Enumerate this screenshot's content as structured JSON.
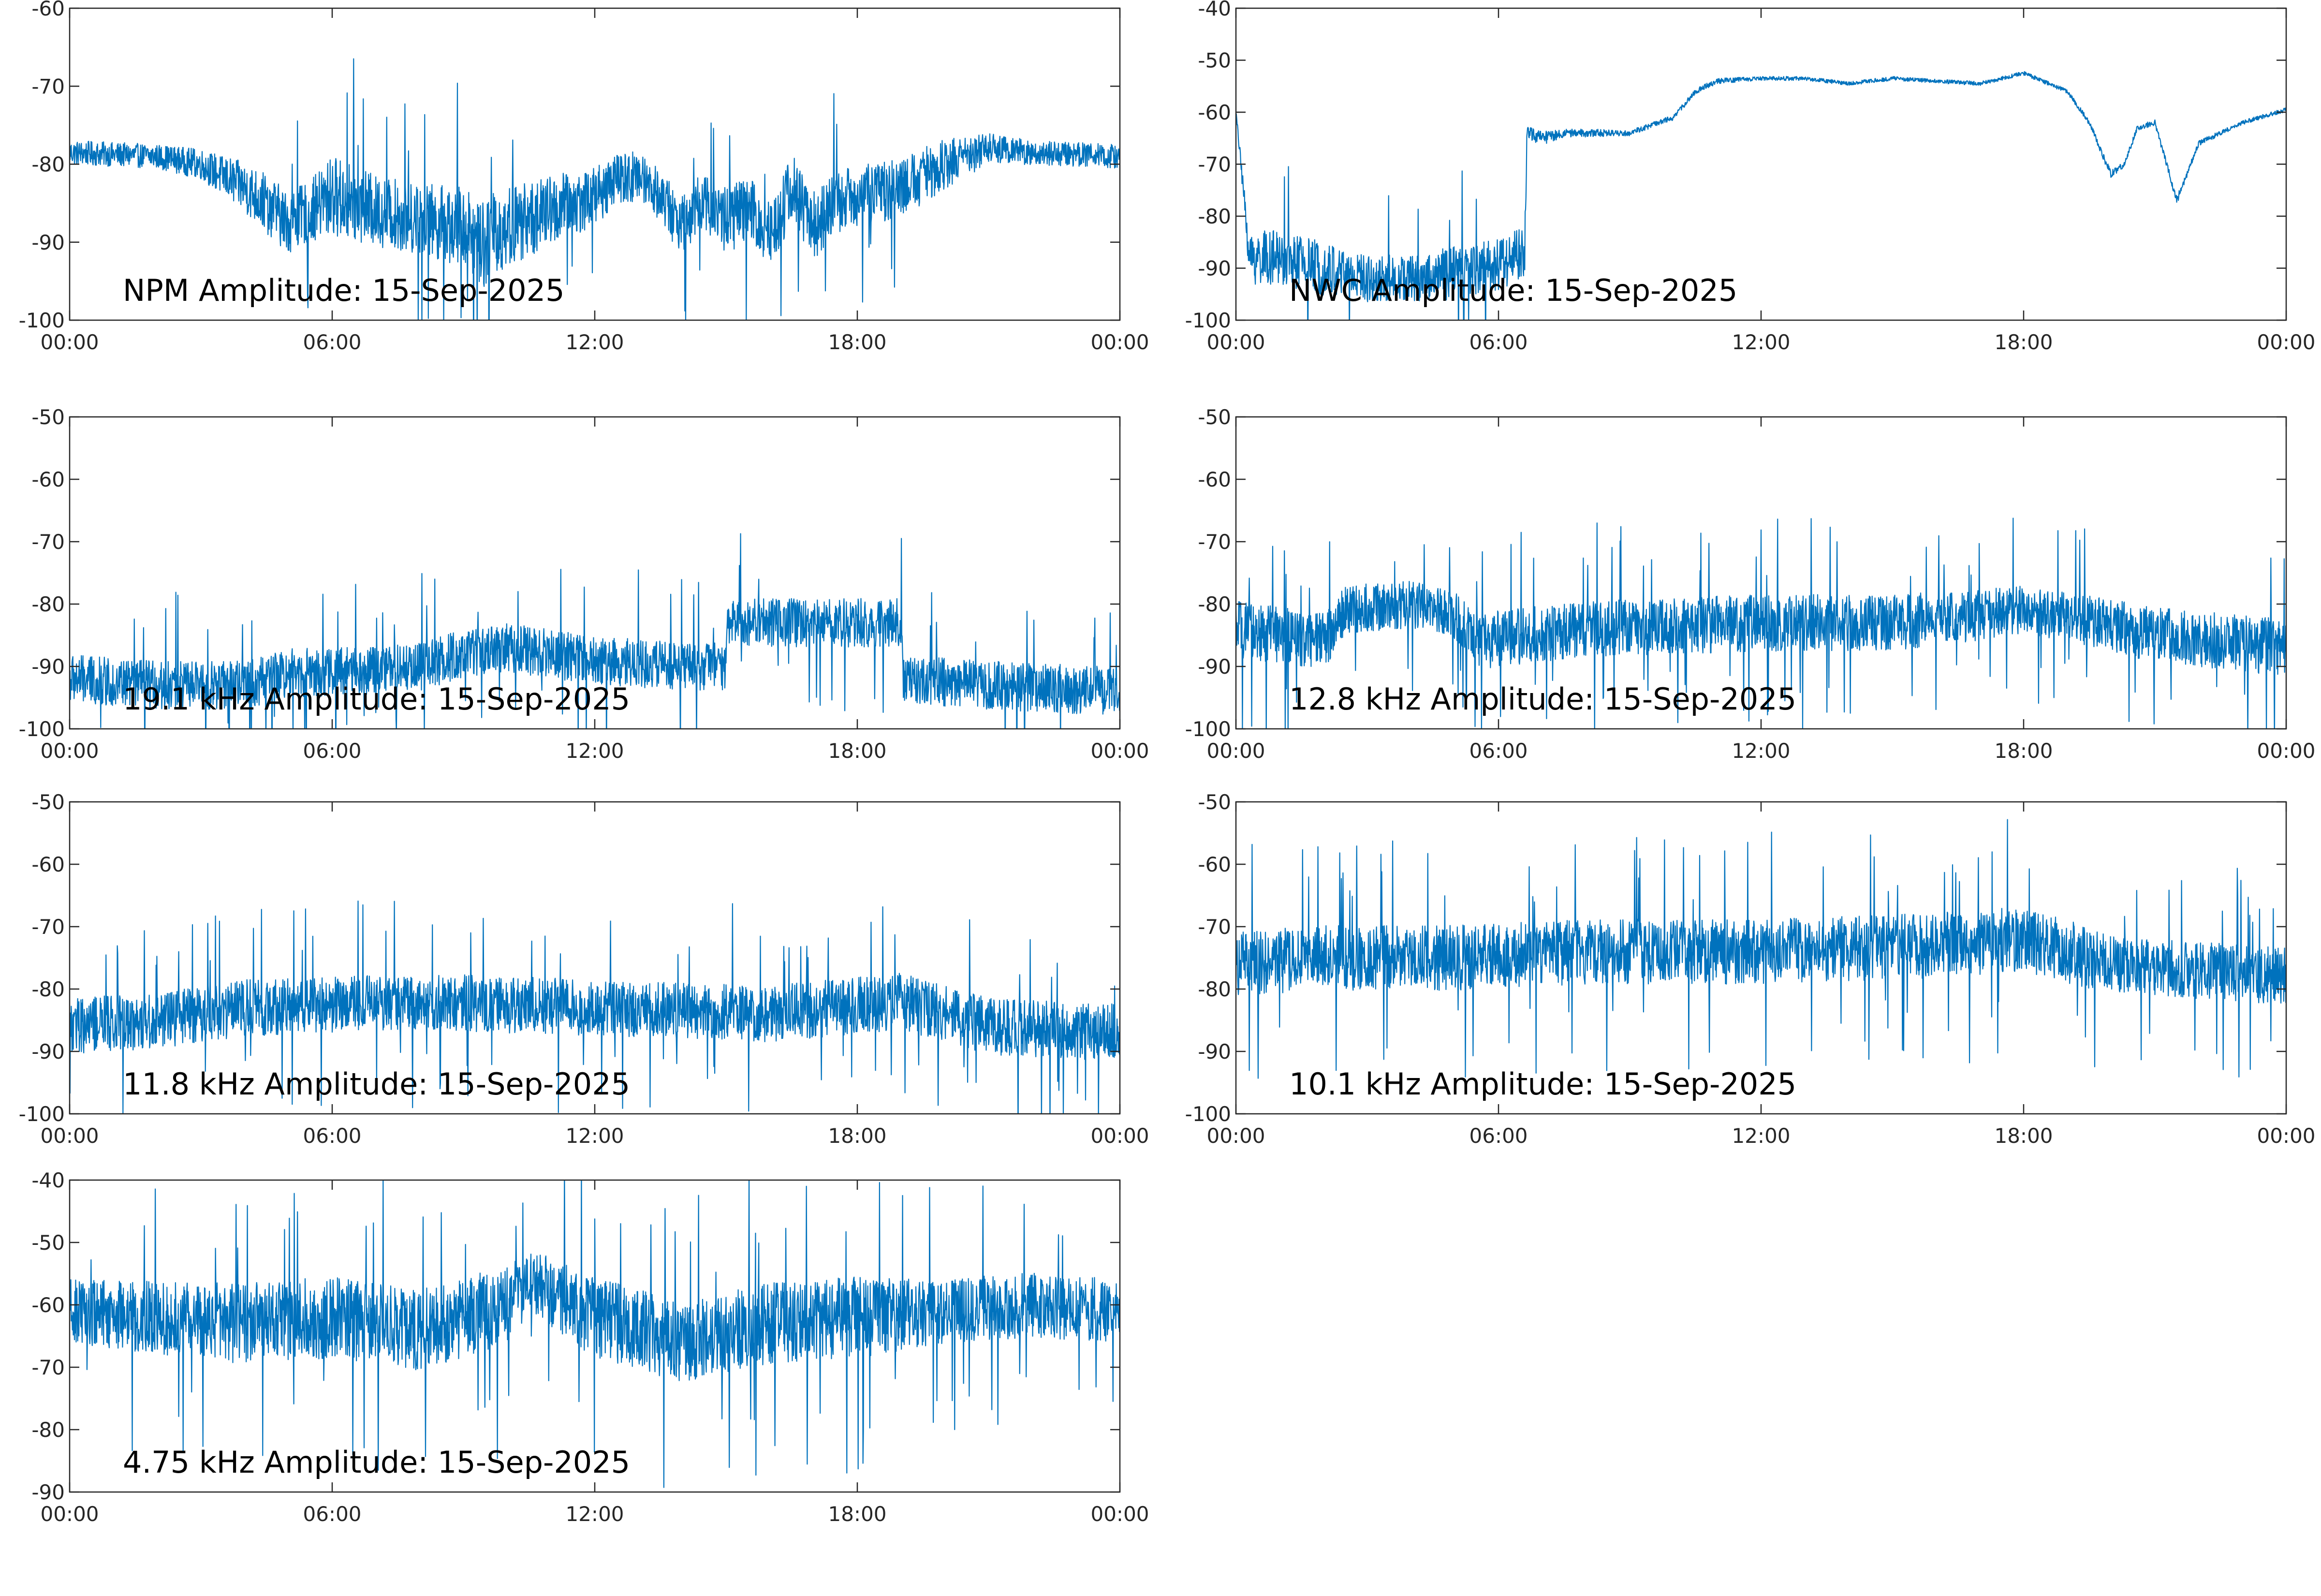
{
  "style": {
    "series_color": "#0072BD",
    "axis_color": "#262626",
    "background": "#ffffff"
  },
  "chart_data": [
    {
      "type": "line",
      "title": "NPM Amplitude: 15-Sep-2025",
      "x_tick_labels": [
        "00:00",
        "06:00",
        "12:00",
        "18:00",
        "00:00"
      ],
      "xlim_hours": [
        0,
        24
      ],
      "ylim": [
        -100,
        -60
      ],
      "y_ticks": [
        -100,
        -90,
        -80,
        -70,
        -60
      ],
      "grid": false,
      "trend": {
        "x": [
          0,
          2,
          3,
          4,
          4.5,
          5,
          5.5,
          6,
          7,
          8,
          9,
          9.5,
          10,
          11,
          12,
          12.5,
          13,
          13.3,
          14,
          14.5,
          15,
          15.5,
          16,
          16.5,
          17,
          17.5,
          18,
          19,
          20,
          21,
          22,
          24
        ],
        "center": [
          -78.5,
          -79,
          -80,
          -83,
          -85,
          -87.5,
          -86,
          -84,
          -86,
          -87,
          -88,
          -90,
          -88,
          -86,
          -84,
          -82,
          -81.5,
          -82.5,
          -88,
          -84.5,
          -87,
          -86,
          -89,
          -83,
          -88,
          -85,
          -84,
          -83,
          -80,
          -78,
          -78.5,
          -79
        ],
        "spread": [
          1.2,
          1.2,
          1.5,
          2.5,
          3,
          3,
          3,
          4,
          3.5,
          3.5,
          4,
          4.5,
          4,
          3.5,
          3,
          2.5,
          2.5,
          2.5,
          3,
          3,
          3.5,
          3.5,
          3.5,
          3.5,
          3.5,
          3,
          3,
          3,
          2.5,
          1.5,
          1.2,
          1.2
        ]
      }
    },
    {
      "type": "line",
      "title": "NWC Amplitude: 15-Sep-2025",
      "x_tick_labels": [
        "00:00",
        "06:00",
        "12:00",
        "18:00",
        "00:00"
      ],
      "xlim_hours": [
        0,
        24
      ],
      "ylim": [
        -100,
        -40
      ],
      "y_ticks": [
        -100,
        -90,
        -80,
        -70,
        -60,
        -50,
        -40
      ],
      "grid": false,
      "trend": {
        "x": [
          0,
          0.25,
          0.3,
          1,
          2,
          3,
          4,
          5,
          6,
          6.6,
          6.65,
          7,
          7.5,
          8,
          9,
          10,
          10.5,
          11,
          12,
          13,
          14,
          15,
          16,
          17,
          18,
          19,
          19.5,
          20,
          20.3,
          20.6,
          21,
          21.5,
          22,
          23,
          24
        ],
        "center": [
          -60,
          -82,
          -88,
          -88,
          -90,
          -92,
          -92,
          -91,
          -89,
          -87,
          -64,
          -65,
          -64,
          -64,
          -64,
          -61,
          -56,
          -54,
          -53.5,
          -53.5,
          -54.5,
          -53.5,
          -54,
          -54.5,
          -52.5,
          -56,
          -62,
          -72,
          -70,
          -63,
          -62,
          -77,
          -66,
          -62,
          -59.5
        ],
        "spread": [
          0.5,
          2,
          4,
          4,
          4,
          3.5,
          3.5,
          4,
          4,
          4,
          1,
          1,
          0.6,
          0.6,
          0.4,
          0.4,
          0.4,
          0.4,
          0.3,
          0.3,
          0.3,
          0.3,
          0.3,
          0.3,
          0.3,
          0.3,
          0.4,
          0.6,
          0.4,
          0.4,
          0.4,
          0.6,
          0.4,
          0.3,
          0.3
        ]
      }
    },
    {
      "type": "line",
      "title": "19.1 kHz Amplitude: 15-Sep-2025",
      "x_tick_labels": [
        "00:00",
        "06:00",
        "12:00",
        "18:00",
        "00:00"
      ],
      "xlim_hours": [
        0,
        24
      ],
      "ylim": [
        -100,
        -50
      ],
      "y_ticks": [
        -100,
        -90,
        -80,
        -70,
        -60,
        -50
      ],
      "grid": false,
      "trend": {
        "x": [
          0,
          2,
          4,
          5,
          6,
          8,
          9,
          10,
          12,
          14,
          15,
          15.05,
          17,
          19,
          19.05,
          21,
          24
        ],
        "center": [
          -92,
          -93,
          -93,
          -91,
          -91,
          -90,
          -88,
          -87,
          -89,
          -90,
          -90,
          -83,
          -83,
          -83,
          -92,
          -93,
          -94
        ],
        "spread": [
          3,
          3,
          3,
          3,
          3,
          3,
          3,
          3,
          3,
          3,
          3,
          3,
          3,
          3,
          3,
          3,
          3
        ]
      }
    },
    {
      "type": "line",
      "title": "12.8 kHz Amplitude: 15-Sep-2025",
      "x_tick_labels": [
        "00:00",
        "06:00",
        "12:00",
        "18:00",
        "00:00"
      ],
      "xlim_hours": [
        0,
        24
      ],
      "ylim": [
        -100,
        -50
      ],
      "y_ticks": [
        -100,
        -90,
        -80,
        -70,
        -60,
        -50
      ],
      "grid": false,
      "trend": {
        "x": [
          0,
          1,
          2,
          2.5,
          4,
          5,
          5.5,
          8,
          12,
          15,
          18,
          19,
          21,
          24
        ],
        "center": [
          -84,
          -85,
          -86,
          -81,
          -80,
          -82,
          -86,
          -84,
          -83,
          -83,
          -81,
          -82,
          -85,
          -87
        ],
        "spread": [
          3.5,
          3.5,
          3.5,
          3,
          3,
          3,
          3.5,
          3.5,
          3.5,
          3.5,
          3,
          3,
          3.5,
          3.5
        ]
      }
    },
    {
      "type": "line",
      "title": "11.8 kHz Amplitude: 15-Sep-2025",
      "x_tick_labels": [
        "00:00",
        "06:00",
        "12:00",
        "18:00",
        "00:00"
      ],
      "xlim_hours": [
        0,
        24
      ],
      "ylim": [
        -100,
        -50
      ],
      "y_ticks": [
        -100,
        -90,
        -80,
        -70,
        -60,
        -50
      ],
      "grid": false,
      "trend": {
        "x": [
          0,
          2,
          4,
          8,
          12,
          16,
          19,
          21,
          24
        ],
        "center": [
          -86,
          -85,
          -83,
          -82,
          -83,
          -84,
          -82,
          -86,
          -87
        ],
        "spread": [
          3.5,
          3.5,
          3.5,
          3.5,
          3.5,
          3.5,
          3.5,
          3.5,
          3.5
        ]
      }
    },
    {
      "type": "line",
      "title": "10.1 kHz Amplitude: 15-Sep-2025",
      "x_tick_labels": [
        "00:00",
        "06:00",
        "12:00",
        "18:00",
        "00:00"
      ],
      "xlim_hours": [
        0,
        24
      ],
      "ylim": [
        -100,
        -50
      ],
      "y_ticks": [
        -100,
        -90,
        -80,
        -70,
        -60,
        -50
      ],
      "grid": false,
      "trend": {
        "x": [
          0,
          2,
          5,
          8,
          12,
          16,
          18,
          19,
          20,
          22,
          24
        ],
        "center": [
          -76,
          -75,
          -75,
          -74,
          -74,
          -73,
          -72,
          -74,
          -76,
          -77,
          -78
        ],
        "spread": [
          4,
          4,
          4,
          4,
          4,
          4,
          4,
          4,
          3.5,
          3.5,
          3.5
        ]
      }
    },
    {
      "type": "line",
      "title": "4.75 kHz Amplitude: 15-Sep-2025",
      "x_tick_labels": [
        "00:00",
        "06:00",
        "12:00",
        "18:00",
        "00:00"
      ],
      "xlim_hours": [
        0,
        24
      ],
      "ylim": [
        -90,
        -40
      ],
      "y_ticks": [
        -90,
        -80,
        -70,
        -60,
        -50,
        -40
      ],
      "grid": false,
      "trend": {
        "x": [
          0,
          2,
          4,
          6,
          8,
          10,
          10.5,
          12,
          14,
          16,
          18,
          20,
          22,
          24
        ],
        "center": [
          -61,
          -62,
          -63,
          -62,
          -64,
          -60,
          -56,
          -62,
          -66,
          -63,
          -62,
          -61,
          -60,
          -61
        ],
        "spread": [
          4,
          4.5,
          5,
          5,
          5,
          5,
          4,
          5,
          5,
          5,
          5,
          4,
          4,
          4
        ]
      }
    }
  ]
}
